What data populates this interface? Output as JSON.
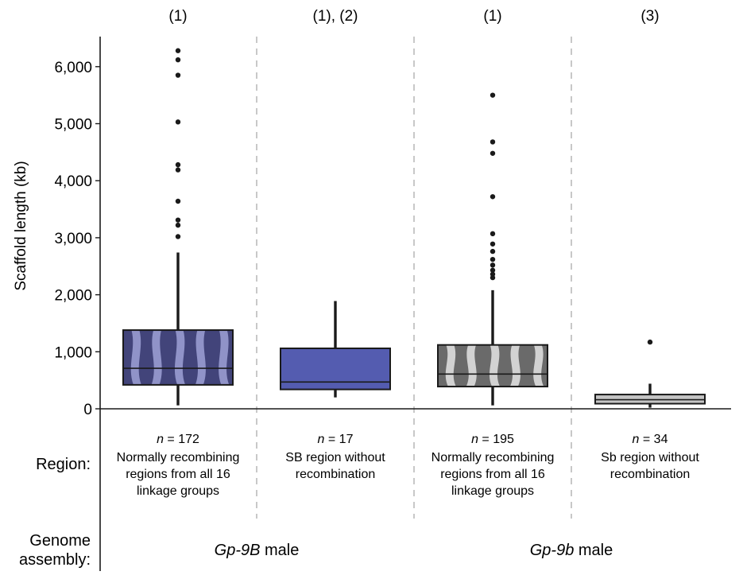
{
  "chart_data": {
    "type": "box",
    "ylabel": "Scaffold length (kb)",
    "ylim": [
      0,
      6500
    ],
    "yticks": [
      0,
      1000,
      2000,
      3000,
      4000,
      5000,
      6000
    ],
    "ytick_labels": [
      "0",
      "1,000",
      "2,000",
      "3,000",
      "4,000",
      "5,000",
      "6,000"
    ],
    "top_labels": [
      "(1)",
      "(1), (2)",
      "(1)",
      "(3)"
    ],
    "row_labels": {
      "region": "Region:",
      "assembly_line1": "Genome",
      "assembly_line2": "assembly:"
    },
    "boxes": [
      {
        "n_prefix": "n",
        "n_value": "= 172",
        "region_lines": [
          "Normally recombining",
          "regions from all 16",
          "linkage groups"
        ],
        "q1": 420,
        "median": 710,
        "q3": 1380,
        "whisker_low": 60,
        "whisker_high": 2740,
        "outliers": [
          3020,
          3220,
          3310,
          3640,
          4190,
          4280,
          5030,
          5850,
          6120,
          6280
        ],
        "fill": "#9598cc",
        "fill_dark": "#42447a",
        "pattern": "stripes"
      },
      {
        "n_prefix": "n",
        "n_value": "= 17",
        "region_lines": [
          "SB region without",
          "recombination"
        ],
        "q1": 340,
        "median": 470,
        "q3": 1060,
        "whisker_low": 200,
        "whisker_high": 1890,
        "outliers": [],
        "fill": "#545cb0",
        "fill_dark": "#545cb0",
        "pattern": "solid"
      },
      {
        "n_prefix": "n",
        "n_value": "= 195",
        "region_lines": [
          "Normally recombining",
          "regions from all 16",
          "linkage groups"
        ],
        "q1": 390,
        "median": 610,
        "q3": 1120,
        "whisker_low": 60,
        "whisker_high": 2080,
        "outliers": [
          2300,
          2360,
          2430,
          2520,
          2620,
          2760,
          2890,
          3070,
          3720,
          4480,
          4680,
          5500
        ],
        "fill": "#d8d8d8",
        "fill_dark": "#6a6a6a",
        "pattern": "stripes"
      },
      {
        "n_prefix": "n",
        "n_value": "= 34",
        "region_lines": [
          "Sb region without",
          "recombination"
        ],
        "q1": 90,
        "median": 160,
        "q3": 250,
        "whisker_low": 20,
        "whisker_high": 440,
        "outliers": [
          1170
        ],
        "fill": "#c4c4c4",
        "fill_dark": "#c4c4c4",
        "pattern": "solid"
      }
    ],
    "assemblies": [
      {
        "name_italic": "Gp-9B",
        "name_rest": " male",
        "spans": [
          0,
          1
        ]
      },
      {
        "name_italic": "Gp-9b",
        "name_rest": " male",
        "spans": [
          2,
          3
        ]
      }
    ],
    "separator_style": "dashed",
    "grid": false
  }
}
